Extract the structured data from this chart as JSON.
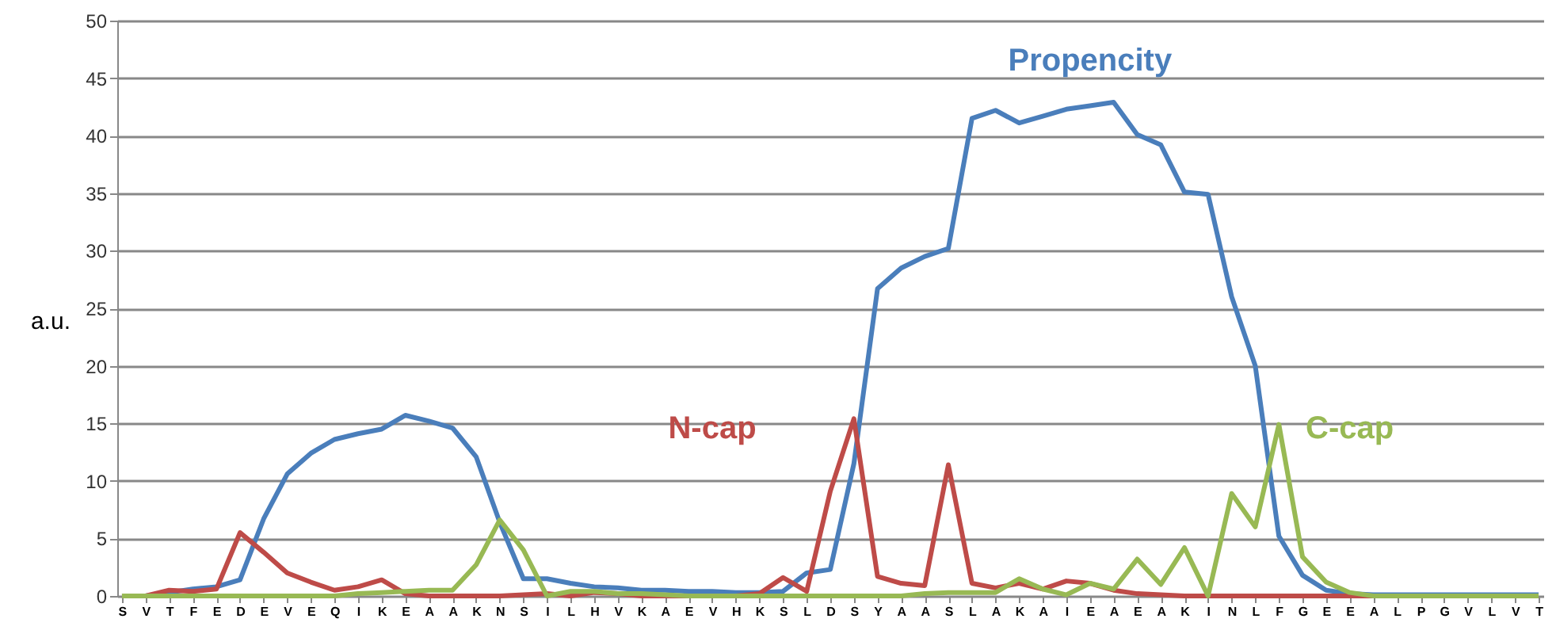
{
  "chart_data": {
    "type": "line",
    "ylabel": "a.u.",
    "categories": [
      "S",
      "V",
      "T",
      "F",
      "E",
      "D",
      "E",
      "V",
      "E",
      "Q",
      "I",
      "K",
      "E",
      "A",
      "A",
      "K",
      "N",
      "S",
      "I",
      "L",
      "H",
      "V",
      "K",
      "A",
      "E",
      "V",
      "H",
      "K",
      "S",
      "L",
      "D",
      "S",
      "Y",
      "A",
      "A",
      "S",
      "L",
      "A",
      "K",
      "A",
      "I",
      "E",
      "A",
      "E",
      "A",
      "K",
      "I",
      "N",
      "L",
      "F",
      "G",
      "E",
      "E",
      "A",
      "L",
      "P",
      "G",
      "V",
      "L",
      "V",
      "T"
    ],
    "series": [
      {
        "name": "Propencity",
        "color": "#4a7ebb",
        "values": [
          0,
          0,
          0.3,
          0.6,
          0.8,
          1.4,
          6.7,
          10.6,
          12.4,
          13.6,
          14.1,
          14.5,
          15.7,
          15.2,
          14.6,
          12.1,
          6.4,
          1.5,
          1.5,
          1.1,
          0.8,
          0.7,
          0.5,
          0.5,
          0.4,
          0.4,
          0.3,
          0.3,
          0.4,
          2.0,
          2.3,
          11.5,
          26.7,
          28.5,
          29.5,
          30.2,
          41.5,
          42.2,
          41.1,
          41.7,
          42.3,
          42.6,
          42.9,
          40.1,
          39.2,
          35.1,
          34.9,
          26,
          20,
          5.2,
          1.8,
          0.5,
          0.2,
          0.1,
          0.1,
          0.1,
          0.1,
          0.1,
          0.1,
          0.1,
          0.1
        ]
      },
      {
        "name": "N-cap",
        "color": "#be4b48",
        "values": [
          0,
          0,
          0.5,
          0.4,
          0.6,
          5.5,
          3.8,
          2.0,
          1.2,
          0.5,
          0.8,
          1.4,
          0.2,
          0,
          0,
          0,
          0,
          0.1,
          0.2,
          0,
          0.3,
          0.2,
          0,
          0,
          0,
          0,
          0,
          0.2,
          1.6,
          0.4,
          9.1,
          15.4,
          1.7,
          1.1,
          0.9,
          11.4,
          1.1,
          0.7,
          1.1,
          0.6,
          1.3,
          1.1,
          0.5,
          0.2,
          0.1,
          0,
          0,
          0,
          0,
          0,
          0,
          0,
          0,
          0,
          0,
          null,
          null,
          null,
          null,
          null,
          null
        ]
      },
      {
        "name": "C-cap",
        "color": "#98b954",
        "values": [
          0,
          0,
          0,
          0,
          0,
          0,
          0,
          0,
          0,
          0,
          0.2,
          0.3,
          0.4,
          0.5,
          0.5,
          2.7,
          6.6,
          4.0,
          0,
          0.4,
          0.4,
          0.2,
          0.2,
          0.1,
          0,
          0,
          0,
          0,
          0,
          0,
          0,
          0,
          0,
          0,
          0.2,
          0.3,
          0.3,
          0.3,
          1.5,
          0.6,
          0.1,
          1.1,
          0.6,
          3.2,
          1.0,
          4.2,
          0,
          8.9,
          6.0,
          14.9,
          3.4,
          1.2,
          0.3,
          0,
          0,
          0,
          0,
          0,
          0,
          0,
          0
        ]
      }
    ],
    "ylim": [
      0,
      50
    ],
    "yticks": [
      0,
      5,
      10,
      15,
      20,
      25,
      30,
      35,
      40,
      45,
      50
    ],
    "grid": "y",
    "marker": "none",
    "line_style": "solid"
  }
}
